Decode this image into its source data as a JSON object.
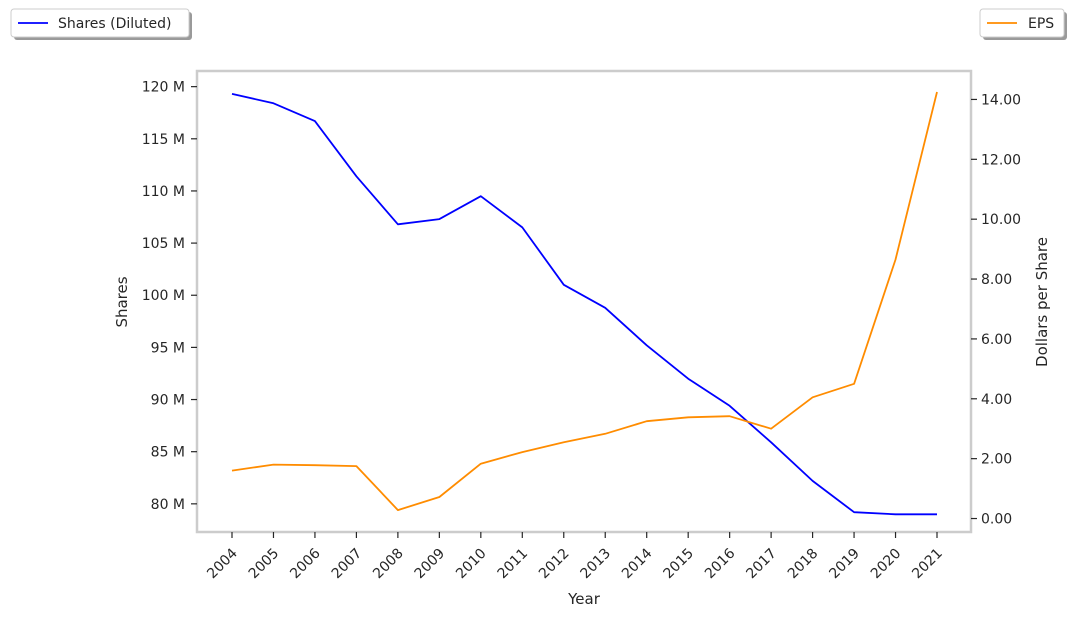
{
  "chart_data": {
    "type": "line",
    "xlabel": "Year",
    "ylabel_left": "Shares",
    "ylabel_right": "Dollars per Share",
    "x": [
      "2004",
      "2005",
      "2006",
      "2007",
      "2008",
      "2009",
      "2010",
      "2011",
      "2012",
      "2013",
      "2014",
      "2015",
      "2016",
      "2017",
      "2018",
      "2019",
      "2020",
      "2021"
    ],
    "y_left_ticks": [
      80,
      85,
      90,
      95,
      100,
      105,
      110,
      115,
      120
    ],
    "y_left_tick_labels": [
      "80 M",
      "85 M",
      "90 M",
      "95 M",
      "100 M",
      "105 M",
      "110 M",
      "115 M",
      "120 M"
    ],
    "y_left_lim": [
      77.3,
      121.5
    ],
    "y_right_ticks": [
      0,
      2,
      4,
      6,
      8,
      10,
      12,
      14
    ],
    "y_right_tick_labels": [
      "0.00",
      "2.00",
      "4.00",
      "6.00",
      "8.00",
      "10.00",
      "12.00",
      "14.00"
    ],
    "y_right_lim": [
      -0.45,
      14.95
    ],
    "series": [
      {
        "name": "Shares (Diluted)",
        "axis": "left",
        "color": "#0000ff",
        "values": [
          119.3,
          118.4,
          116.7,
          111.4,
          106.8,
          107.3,
          109.5,
          106.5,
          101.0,
          98.8,
          95.2,
          92.0,
          89.4,
          85.9,
          82.2,
          79.2,
          79.0,
          79.0
        ]
      },
      {
        "name": "EPS",
        "axis": "right",
        "color": "#ff8c00",
        "values": [
          1.6,
          1.8,
          1.78,
          1.75,
          0.28,
          0.72,
          1.83,
          2.22,
          2.55,
          2.83,
          3.25,
          3.38,
          3.42,
          3.0,
          4.05,
          4.5,
          8.65,
          14.25
        ]
      }
    ],
    "legend_placement": [
      "top-left",
      "top-right"
    ],
    "grid": false
  }
}
